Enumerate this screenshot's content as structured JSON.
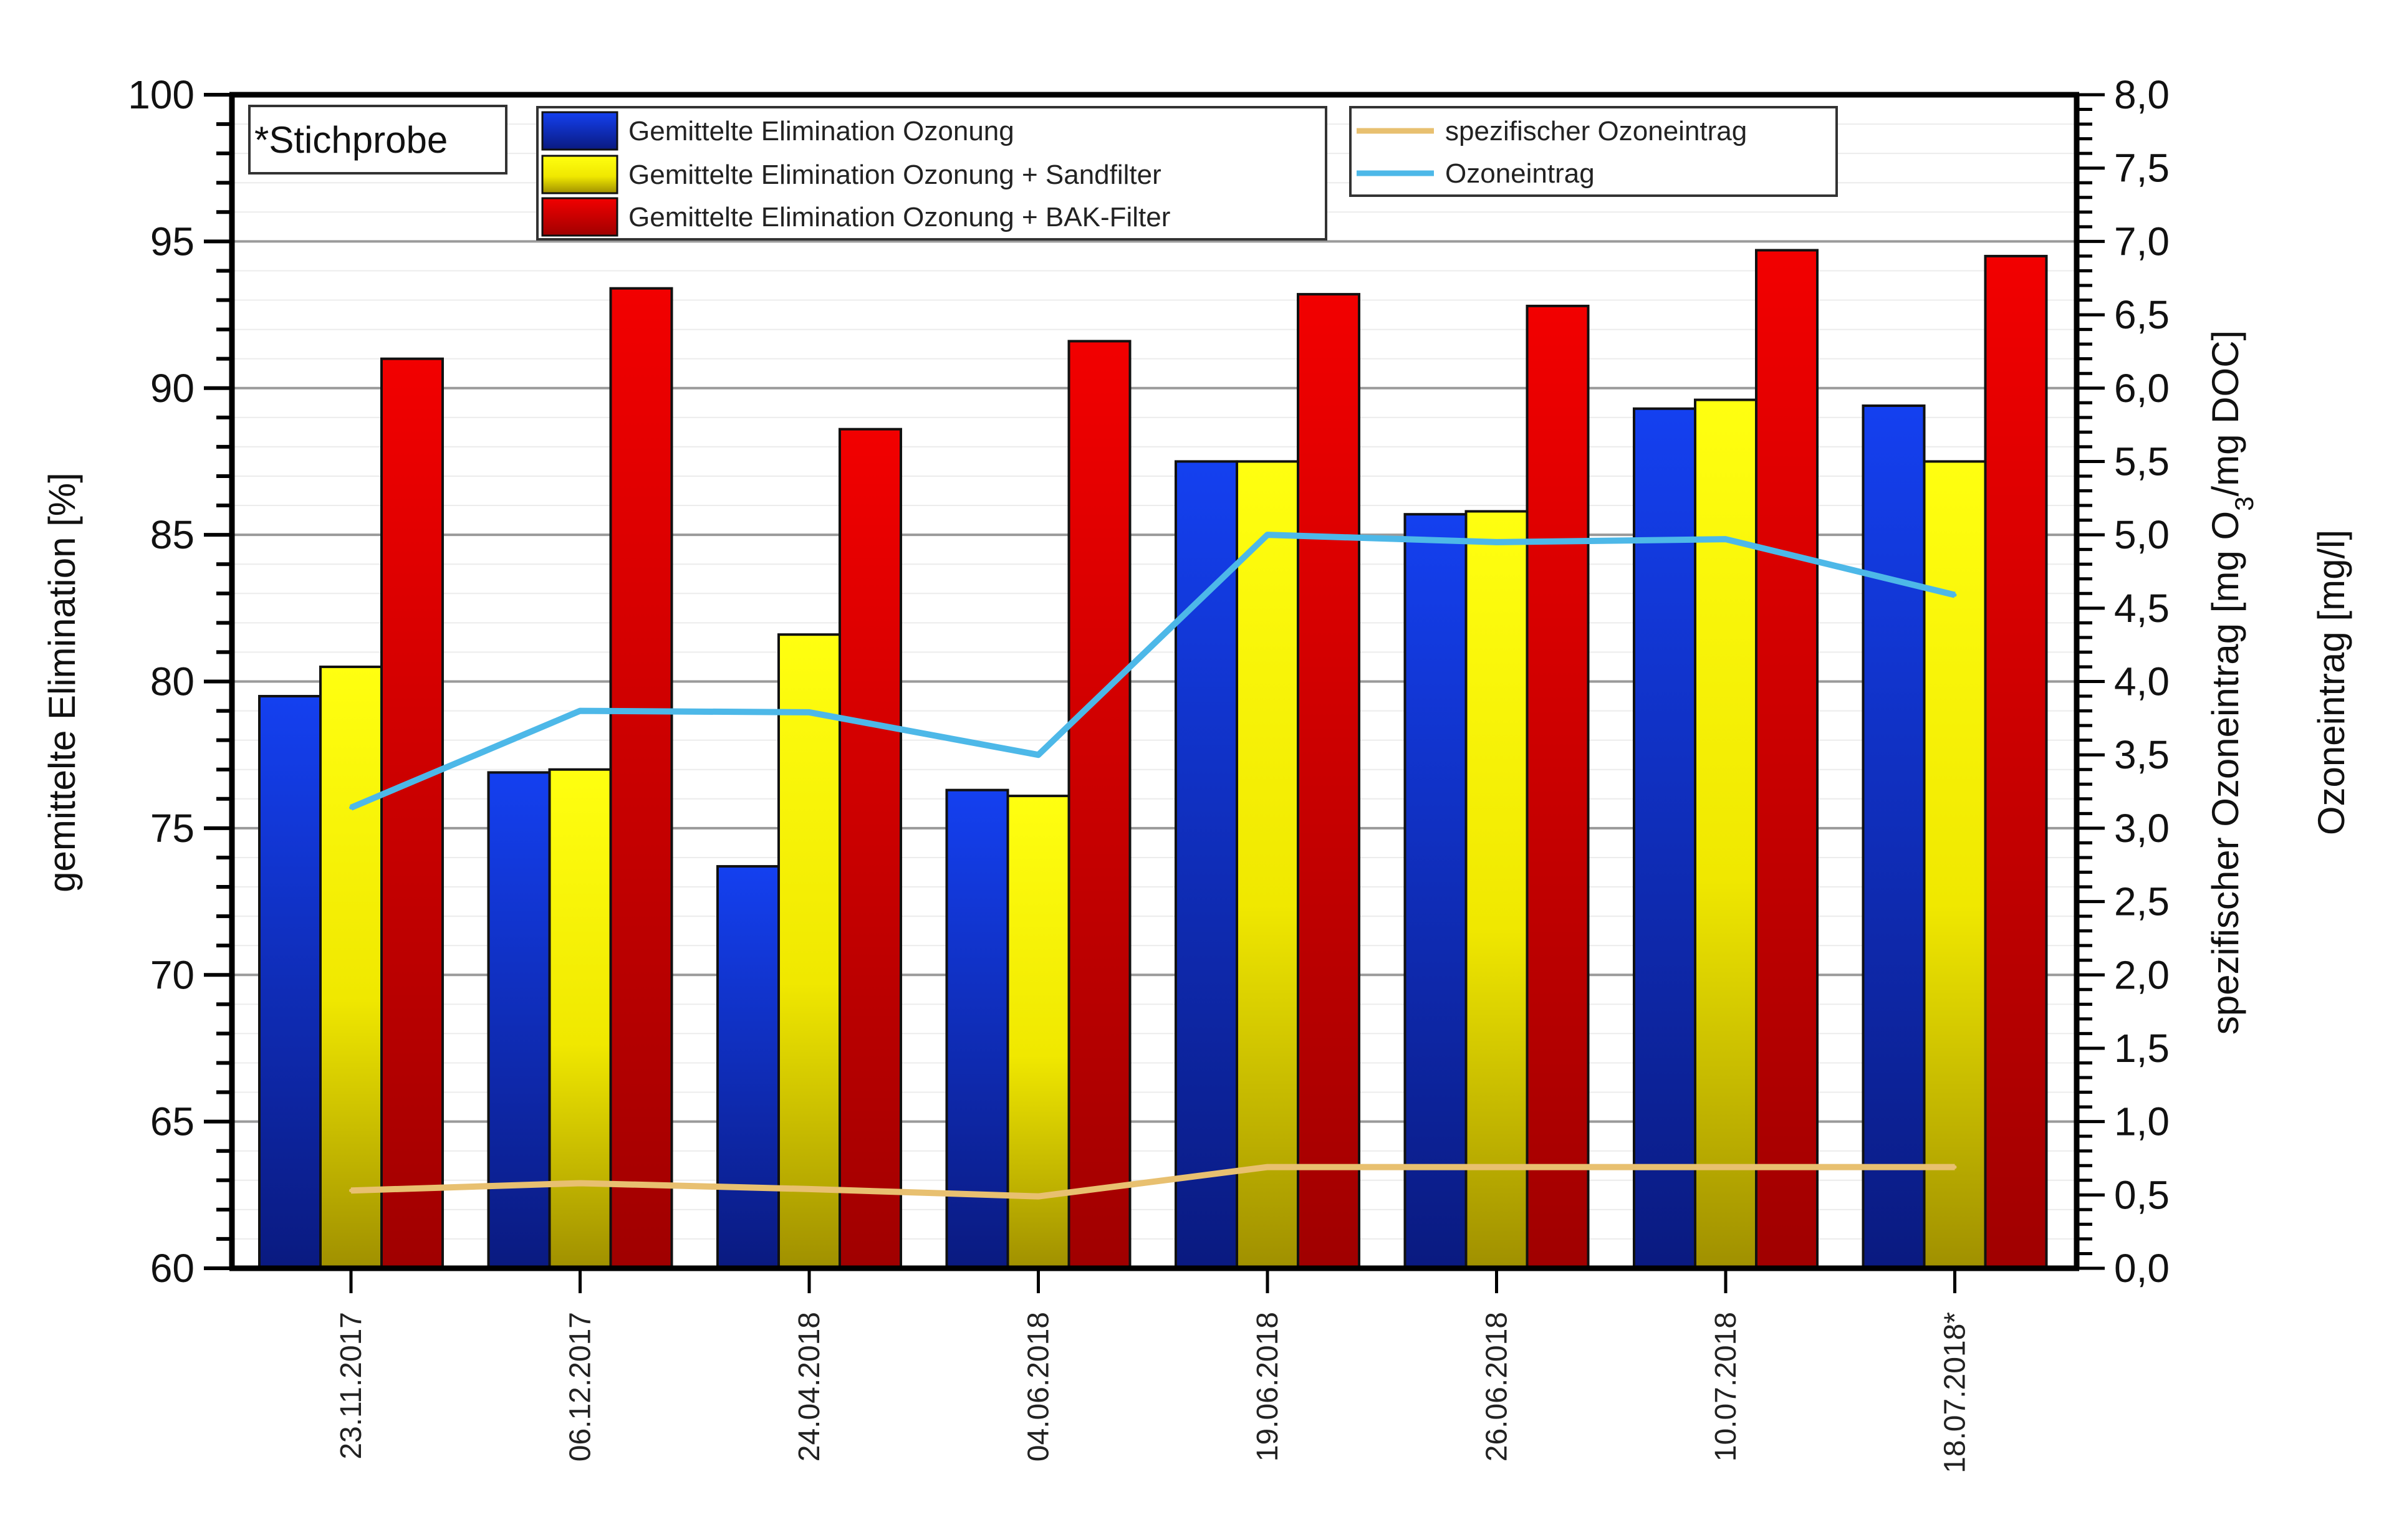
{
  "chart_data": {
    "type": "bar",
    "title": "",
    "note": "*Stichprobe",
    "categories": [
      "23.11.2017",
      "06.12.2017",
      "24.04.2018",
      "04.06.2018",
      "19.06.2018",
      "26.06.2018",
      "10.07.2018",
      "18.07.2018*"
    ],
    "ylabel": "gemittelte Elimination [%]",
    "ylim": [
      60,
      100
    ],
    "yticks": [
      "60",
      "65",
      "70",
      "75",
      "80",
      "85",
      "90",
      "95",
      "100"
    ],
    "y2label_1": "spezifischer Ozoneintrag [mg O",
    "y2label_1_sub": "3",
    "y2label_1_end": "/mg DOC]",
    "y2label_2": "Ozoneintrag [mg/l]",
    "y2lim": [
      0,
      8
    ],
    "y2ticks": [
      "0,0",
      "0,5",
      "1,0",
      "1,5",
      "2,0",
      "2,5",
      "3,0",
      "3,5",
      "4,0",
      "4,5",
      "5,0",
      "5,5",
      "6,0",
      "6,5",
      "7,0",
      "7,5",
      "8,0"
    ],
    "grid": true,
    "series": [
      {
        "name": "Gemittelte Elimination Ozonung",
        "type": "bar",
        "axis": "left",
        "color": "#1030e0",
        "color_dark": "#0a1a80",
        "values": [
          79.5,
          76.9,
          73.7,
          76.3,
          87.5,
          85.7,
          89.3,
          89.4
        ]
      },
      {
        "name": "Gemittelte Elimination Ozonung + Sandfilter",
        "type": "bar",
        "axis": "left",
        "color": "#ffff00",
        "color_dark": "#a09000",
        "values": [
          80.5,
          77.0,
          81.6,
          76.1,
          87.5,
          85.8,
          89.6,
          87.5
        ]
      },
      {
        "name": "Gemittelte Elimination Ozonung + BAK-Filter",
        "type": "bar",
        "axis": "left",
        "color": "#ee0000",
        "color_dark": "#a00000",
        "values": [
          91.0,
          93.4,
          88.6,
          91.6,
          93.2,
          92.8,
          94.7,
          94.5
        ]
      },
      {
        "name": "spezifischer Ozoneintrag",
        "type": "line",
        "axis": "right",
        "color": "#e8c070",
        "values": [
          0.53,
          0.58,
          0.54,
          0.49,
          0.69,
          0.69,
          0.69,
          0.69
        ]
      },
      {
        "name": "Ozoneintrag",
        "type": "line",
        "axis": "right",
        "color": "#4db8e8",
        "values": [
          3.14,
          3.8,
          3.79,
          3.5,
          5.0,
          4.95,
          4.97,
          4.59
        ]
      }
    ],
    "legend": {
      "bars": [
        "Gemittelte Elimination Ozonung",
        "Gemittelte Elimination Ozonung + Sandfilter",
        "Gemittelte Elimination Ozonung + BAK-Filter"
      ],
      "lines": [
        "spezifischer Ozoneintrag",
        "Ozoneintrag"
      ],
      "placement": "top"
    }
  }
}
